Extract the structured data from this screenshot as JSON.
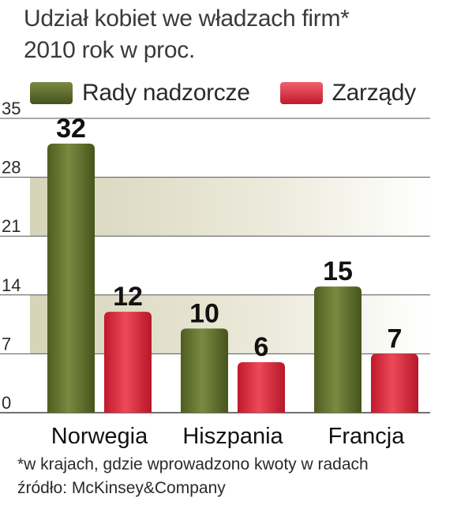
{
  "title_line1": "Udział kobiet we władzach firm*",
  "title_line2": "2010 rok w proc.",
  "legend": [
    {
      "label": "Rady nadzorcze",
      "color": "#5b6a2a"
    },
    {
      "label": "Zarządy",
      "color": "#d8273a"
    }
  ],
  "footnote": "*w krajach, gdzie wprowadzono kwoty w radach",
  "source": "źródło: McKinsey&Company",
  "chart_data": {
    "type": "bar",
    "title": "Udział kobiet we władzach firm* 2010 rok w proc.",
    "categories": [
      "Norwegia",
      "Hiszpania",
      "Francja"
    ],
    "series": [
      {
        "name": "Rady nadzorcze",
        "values": [
          32,
          10,
          15
        ],
        "color": "#5b6a2a"
      },
      {
        "name": "Zarządy",
        "values": [
          12,
          6,
          7
        ],
        "color": "#d8273a"
      }
    ],
    "yticks": [
      0,
      7,
      14,
      21,
      28,
      35
    ],
    "ylim": [
      0,
      35
    ],
    "xlabel": "",
    "ylabel": "",
    "grid": true,
    "legend_position": "top"
  }
}
